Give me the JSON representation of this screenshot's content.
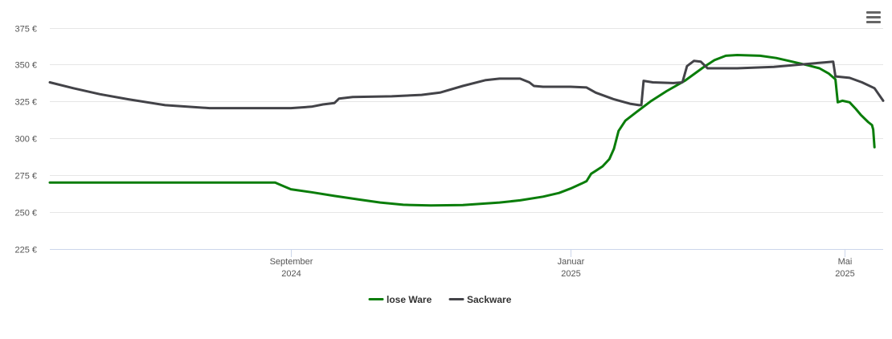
{
  "menu": {
    "icon": "hamburger-menu-icon"
  },
  "chart_data": {
    "type": "line",
    "title": "",
    "xlabel": "",
    "ylabel": "",
    "currency_suffix": " €",
    "y_ticks": [
      225,
      250,
      275,
      300,
      325,
      350,
      375
    ],
    "y_tick_labels": [
      "225 €",
      "250 €",
      "275 €",
      "300 €",
      "325 €",
      "350 €",
      "375 €"
    ],
    "ylim": [
      225,
      380
    ],
    "xlim": [
      "2024-06-01",
      "2025-05-15"
    ],
    "x_ticks": [
      {
        "date": "2024-09-01",
        "month": "September",
        "year": "2024"
      },
      {
        "date": "2025-01-01",
        "month": "Januar",
        "year": "2025"
      },
      {
        "date": "2025-05-01",
        "month": "Mai",
        "year": "2025"
      }
    ],
    "grid": true,
    "legend_position": "bottom-center",
    "series": [
      {
        "name": "lose Ware",
        "color": "#0a7d0a",
        "points": [
          [
            "2024-06-01",
            270
          ],
          [
            "2024-08-26",
            270
          ],
          [
            "2024-08-28",
            268.5
          ],
          [
            "2024-09-01",
            265.5
          ],
          [
            "2024-09-10",
            263.5
          ],
          [
            "2024-09-20",
            261
          ],
          [
            "2024-10-01",
            258.5
          ],
          [
            "2024-10-10",
            256.5
          ],
          [
            "2024-10-20",
            255
          ],
          [
            "2024-11-01",
            254.5
          ],
          [
            "2024-11-15",
            254.8
          ],
          [
            "2024-12-01",
            256.5
          ],
          [
            "2024-12-10",
            258
          ],
          [
            "2024-12-20",
            260.5
          ],
          [
            "2024-12-27",
            263
          ],
          [
            "2025-01-01",
            266
          ],
          [
            "2025-01-06",
            269.5
          ],
          [
            "2025-01-08",
            271
          ],
          [
            "2025-01-10",
            276
          ],
          [
            "2025-01-12",
            278
          ],
          [
            "2025-01-15",
            281
          ],
          [
            "2025-01-18",
            286
          ],
          [
            "2025-01-20",
            293
          ],
          [
            "2025-01-22",
            305
          ],
          [
            "2025-01-25",
            312
          ],
          [
            "2025-01-30",
            318
          ],
          [
            "2025-02-05",
            325
          ],
          [
            "2025-02-12",
            332
          ],
          [
            "2025-02-20",
            339
          ],
          [
            "2025-02-28",
            348
          ],
          [
            "2025-03-05",
            353
          ],
          [
            "2025-03-10",
            356
          ],
          [
            "2025-03-15",
            356.5
          ],
          [
            "2025-03-25",
            356
          ],
          [
            "2025-04-01",
            354.5
          ],
          [
            "2025-04-08",
            352
          ],
          [
            "2025-04-15",
            349.5
          ],
          [
            "2025-04-20",
            347.5
          ],
          [
            "2025-04-24",
            344
          ],
          [
            "2025-04-27",
            340
          ],
          [
            "2025-04-28",
            324.5
          ],
          [
            "2025-04-30",
            325.5
          ],
          [
            "2025-05-05",
            324.5
          ],
          [
            "2025-05-10",
            320
          ],
          [
            "2025-05-14",
            316
          ],
          [
            "2025-05-20",
            311
          ],
          [
            "2025-05-23",
            309
          ],
          [
            "2025-05-24",
            306
          ],
          [
            "2025-05-25",
            294
          ]
        ]
      },
      {
        "name": "Sackware",
        "color": "#434348",
        "points": [
          [
            "2024-06-01",
            338
          ],
          [
            "2024-06-10",
            334
          ],
          [
            "2024-06-20",
            330
          ],
          [
            "2024-07-01",
            326.5
          ],
          [
            "2024-07-15",
            322.5
          ],
          [
            "2024-08-01",
            320.5
          ],
          [
            "2024-08-20",
            320.5
          ],
          [
            "2024-09-01",
            320.5
          ],
          [
            "2024-09-10",
            321.5
          ],
          [
            "2024-09-15",
            323
          ],
          [
            "2024-09-20",
            324
          ],
          [
            "2024-09-22",
            327
          ],
          [
            "2024-09-28",
            328
          ],
          [
            "2024-10-15",
            328.5
          ],
          [
            "2024-10-28",
            329.5
          ],
          [
            "2024-11-05",
            331
          ],
          [
            "2024-11-15",
            335.5
          ],
          [
            "2024-11-25",
            339.5
          ],
          [
            "2024-12-01",
            340.5
          ],
          [
            "2024-12-10",
            340.5
          ],
          [
            "2024-12-14",
            338
          ],
          [
            "2024-12-16",
            335.5
          ],
          [
            "2024-12-20",
            335
          ],
          [
            "2025-01-01",
            335
          ],
          [
            "2025-01-08",
            334.5
          ],
          [
            "2025-01-12",
            331
          ],
          [
            "2025-01-20",
            326.5
          ],
          [
            "2025-01-27",
            323.5
          ],
          [
            "2025-01-31",
            322.5
          ],
          [
            "2025-02-01",
            322.5
          ],
          [
            "2025-02-02",
            339
          ],
          [
            "2025-02-06",
            338
          ],
          [
            "2025-02-15",
            337.5
          ],
          [
            "2025-02-19",
            338
          ],
          [
            "2025-02-21",
            349
          ],
          [
            "2025-02-24",
            352.5
          ],
          [
            "2025-02-27",
            352
          ],
          [
            "2025-03-02",
            347.5
          ],
          [
            "2025-03-15",
            347.5
          ],
          [
            "2025-03-31",
            348.5
          ],
          [
            "2025-04-15",
            350.5
          ],
          [
            "2025-04-22",
            351.5
          ],
          [
            "2025-04-26",
            352
          ],
          [
            "2025-04-27",
            342
          ],
          [
            "2025-05-05",
            341
          ],
          [
            "2025-05-15",
            338
          ],
          [
            "2025-05-25",
            334
          ],
          [
            "2025-06-01",
            325.5
          ]
        ]
      }
    ]
  }
}
